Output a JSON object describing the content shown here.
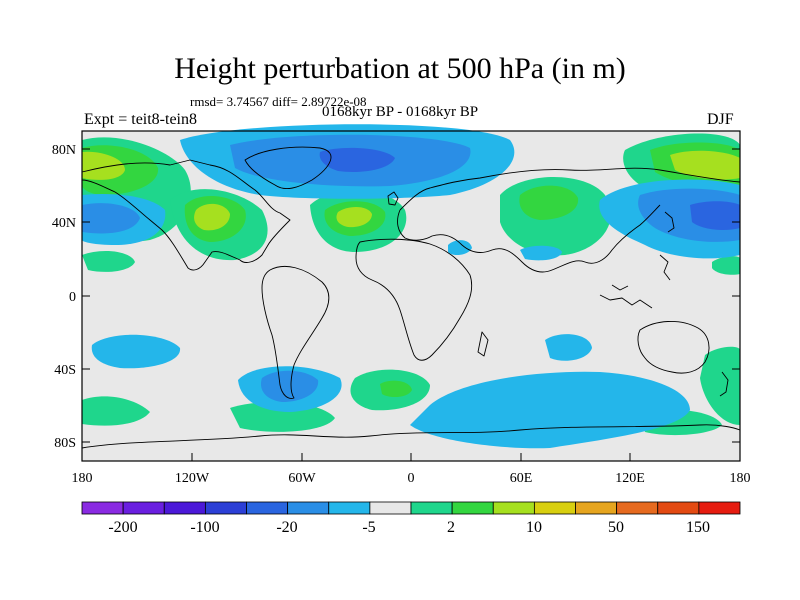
{
  "title": "Height perturbation at 500 hPa (in m)",
  "stats": "rmsd= 3.74567 diff= 2.89722e-08",
  "expt": "Expt = teit8-tein8",
  "period": "0168kyr BP - 0168kyr BP",
  "season": "DJF",
  "lat_labels": [
    "80N",
    "40N",
    "0",
    "40S",
    "80S"
  ],
  "lon_labels": [
    "180",
    "120W",
    "60W",
    "0",
    "60E",
    "120E",
    "180"
  ],
  "colorbar": {
    "colors": [
      "#8a2be2",
      "#6a1fe0",
      "#4b18d8",
      "#2c3fd6",
      "#2a65e0",
      "#2a8ee6",
      "#24b6ea",
      "#e8e8e8",
      "#1fd68c",
      "#33d640",
      "#a6e01f",
      "#d8cf10",
      "#e6a51f",
      "#e66a1f",
      "#e34a12",
      "#e61c10"
    ],
    "labels": [
      "-200",
      "-100",
      "-20",
      "-5",
      "2",
      "10",
      "50",
      "150"
    ]
  },
  "map_colors": {
    "neutral": "#e8e8e8",
    "pos1": "#1fd68c",
    "pos2": "#33d640",
    "pos3": "#a6e01f",
    "neg1": "#24b6ea",
    "neg2": "#2a8ee6",
    "neg3": "#2a65e0"
  }
}
